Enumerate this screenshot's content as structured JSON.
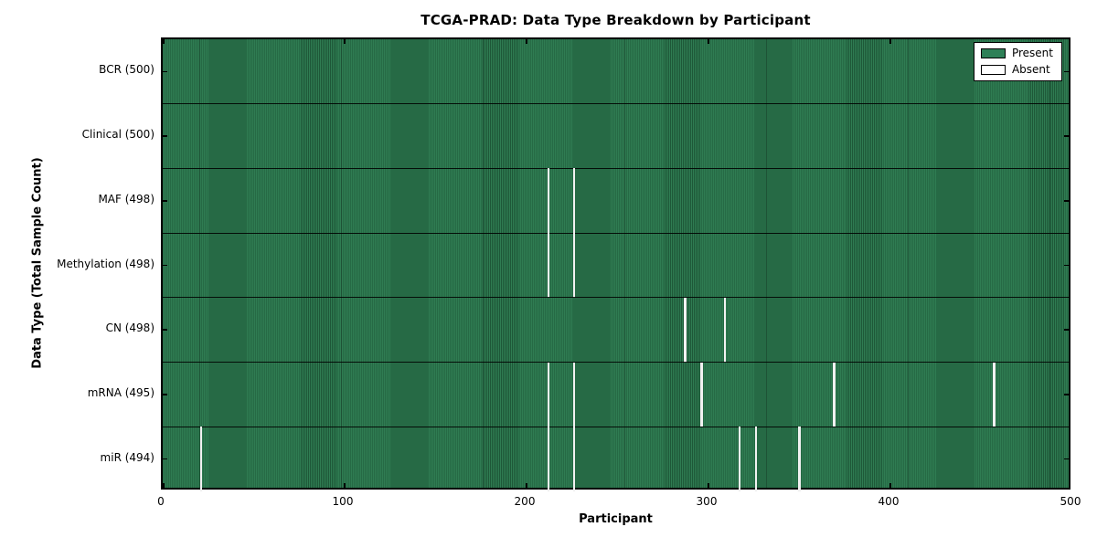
{
  "title": "TCGA-PRAD: Data Type Breakdown by Participant",
  "chart_data": {
    "type": "heatmap",
    "title": "TCGA-PRAD: Data Type Breakdown by Participant",
    "xlabel": "Participant",
    "ylabel": "Data Type (Total Sample Count)",
    "xlim": [
      0,
      500
    ],
    "x_ticks": [
      0,
      100,
      200,
      300,
      400,
      500
    ],
    "n_participants": 500,
    "grid": false,
    "legend_position": "upper right",
    "legend": [
      {
        "label": "Present",
        "color": "#2e8057"
      },
      {
        "label": "Absent",
        "color": "#ffffff"
      }
    ],
    "rows": [
      {
        "label": "BCR (500)",
        "data_type": "BCR",
        "total_samples": 500,
        "absent_participants": []
      },
      {
        "label": "Clinical (500)",
        "data_type": "Clinical",
        "total_samples": 500,
        "absent_participants": []
      },
      {
        "label": "MAF (498)",
        "data_type": "MAF",
        "total_samples": 498,
        "absent_participants": [
          213,
          227
        ]
      },
      {
        "label": "Methylation (498)",
        "data_type": "Methylation",
        "total_samples": 498,
        "absent_participants": [
          213,
          227
        ]
      },
      {
        "label": "CN (498)",
        "data_type": "CN",
        "total_samples": 498,
        "absent_participants": [
          288,
          310
        ]
      },
      {
        "label": "mRNA (495)",
        "data_type": "mRNA",
        "total_samples": 495,
        "absent_participants": [
          213,
          227,
          297,
          370,
          458
        ]
      },
      {
        "label": "miR (494)",
        "data_type": "miR",
        "total_samples": 494,
        "absent_participants": [
          22,
          213,
          227,
          318,
          327,
          351
        ]
      }
    ],
    "colors": {
      "present": "#2e8057",
      "present_stripe_dark": "#1e5838",
      "present_stripe_light": "#2f7c52",
      "absent": "#f2f2f2",
      "frame": "#000000",
      "text": "#000000"
    }
  }
}
